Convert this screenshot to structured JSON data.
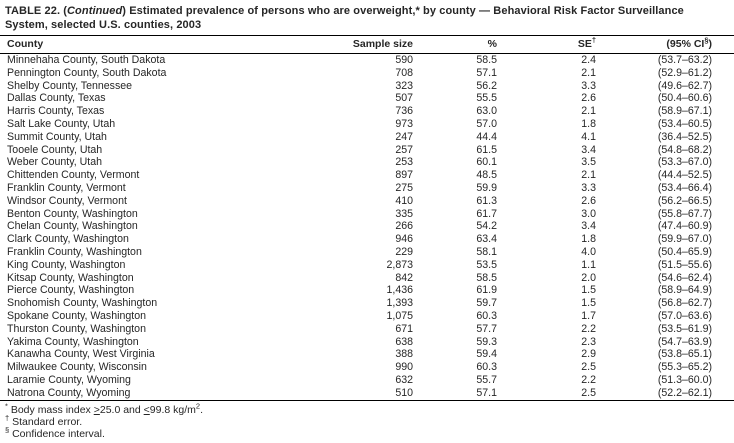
{
  "title": {
    "part1": "TABLE 22. (",
    "continued": "Continued",
    "part2": ") Estimated prevalence of persons who are overweight,* by county — Behavioral Risk Factor Surveillance",
    "part3": "System, selected U.S. counties, 2003"
  },
  "table": {
    "columns": [
      {
        "pre": "County"
      },
      {
        "pre": "Sample size"
      },
      {
        "pre": "%"
      },
      {
        "pre": "SE",
        "sup": "†"
      },
      {
        "pre": "(95% CI",
        "sup": "§",
        "post": ")"
      }
    ],
    "rows": [
      [
        "Minnehaha County, South Dakota",
        "590",
        "58.5",
        "2.4",
        "(53.7–63.2)"
      ],
      [
        "Pennington County, South Dakota",
        "708",
        "57.1",
        "2.1",
        "(52.9–61.2)"
      ],
      [
        "Shelby County, Tennessee",
        "323",
        "56.2",
        "3.3",
        "(49.6–62.7)"
      ],
      [
        "Dallas County, Texas",
        "507",
        "55.5",
        "2.6",
        "(50.4–60.6)"
      ],
      [
        "Harris County, Texas",
        "736",
        "63.0",
        "2.1",
        "(58.9–67.1)"
      ],
      [
        "Salt Lake County, Utah",
        "973",
        "57.0",
        "1.8",
        "(53.4–60.5)"
      ],
      [
        "Summit County, Utah",
        "247",
        "44.4",
        "4.1",
        "(36.4–52.5)"
      ],
      [
        "Tooele County, Utah",
        "257",
        "61.5",
        "3.4",
        "(54.8–68.2)"
      ],
      [
        "Weber County, Utah",
        "253",
        "60.1",
        "3.5",
        "(53.3–67.0)"
      ],
      [
        "Chittenden County, Vermont",
        "897",
        "48.5",
        "2.1",
        "(44.4–52.5)"
      ],
      [
        "Franklin County, Vermont",
        "275",
        "59.9",
        "3.3",
        "(53.4–66.4)"
      ],
      [
        "Windsor County, Vermont",
        "410",
        "61.3",
        "2.6",
        "(56.2–66.5)"
      ],
      [
        "Benton County, Washington",
        "335",
        "61.7",
        "3.0",
        "(55.8–67.7)"
      ],
      [
        "Chelan County, Washington",
        "266",
        "54.2",
        "3.4",
        "(47.4–60.9)"
      ],
      [
        "Clark County, Washington",
        "946",
        "63.4",
        "1.8",
        "(59.9–67.0)"
      ],
      [
        "Franklin County, Washington",
        "229",
        "58.1",
        "4.0",
        "(50.4–65.9)"
      ],
      [
        "King County, Washington",
        "2,873",
        "53.5",
        "1.1",
        "(51.5–55.6)"
      ],
      [
        "Kitsap County, Washington",
        "842",
        "58.5",
        "2.0",
        "(54.6–62.4)"
      ],
      [
        "Pierce County, Washington",
        "1,436",
        "61.9",
        "1.5",
        "(58.9–64.9)"
      ],
      [
        "Snohomish County, Washington",
        "1,393",
        "59.7",
        "1.5",
        "(56.8–62.7)"
      ],
      [
        "Spokane County, Washington",
        "1,075",
        "60.3",
        "1.7",
        "(57.0–63.6)"
      ],
      [
        "Thurston County, Washington",
        "671",
        "57.7",
        "2.2",
        "(53.5–61.9)"
      ],
      [
        "Yakima County, Washington",
        "638",
        "59.3",
        "2.3",
        "(54.7–63.9)"
      ],
      [
        "Kanawha County, West Virginia",
        "388",
        "59.4",
        "2.9",
        "(53.8–65.1)"
      ],
      [
        "Milwaukee County, Wisconsin",
        "990",
        "60.3",
        "2.5",
        "(55.3–65.2)"
      ],
      [
        "Laramie County, Wyoming",
        "632",
        "55.7",
        "2.2",
        "(51.3–60.0)"
      ],
      [
        "Natrona County, Wyoming",
        "510",
        "57.1",
        "2.5",
        "(52.2–62.1)"
      ]
    ]
  },
  "footnotes": {
    "f1": {
      "sym": "*",
      "a": " Body mass index ",
      "gte": ">",
      "b": "25.0 and ",
      "lte": "<",
      "c": "99.8 kg/m",
      "sup": "2",
      "d": "."
    },
    "f2": {
      "sym": "†",
      "text": " Standard error."
    },
    "f3": {
      "sym": "§",
      "text": " Confidence interval."
    }
  }
}
